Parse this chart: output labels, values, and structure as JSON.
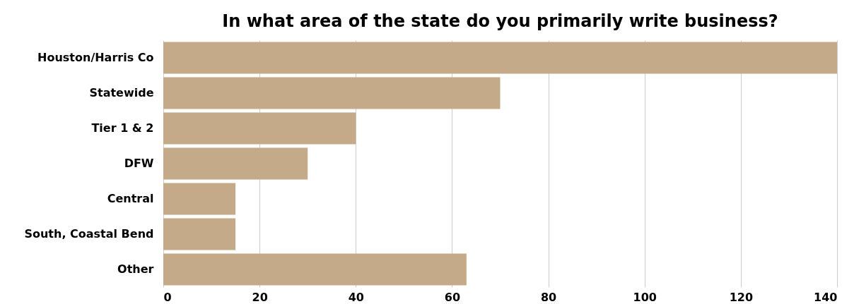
{
  "chart_data": {
    "type": "bar",
    "orientation": "horizontal",
    "title": "In what area of the state do you primarily write business?",
    "categories": [
      "Houston/Harris Co",
      "Statewide",
      "Tier 1 & 2",
      "DFW",
      "Central",
      "South, Coastal Bend",
      "Other"
    ],
    "values": [
      140,
      70,
      40,
      30,
      15,
      15,
      63
    ],
    "color": "#c4aa88",
    "xlim": [
      0,
      140
    ],
    "xticks": [
      0,
      20,
      40,
      60,
      80,
      100,
      120,
      140
    ],
    "grid": "x"
  }
}
